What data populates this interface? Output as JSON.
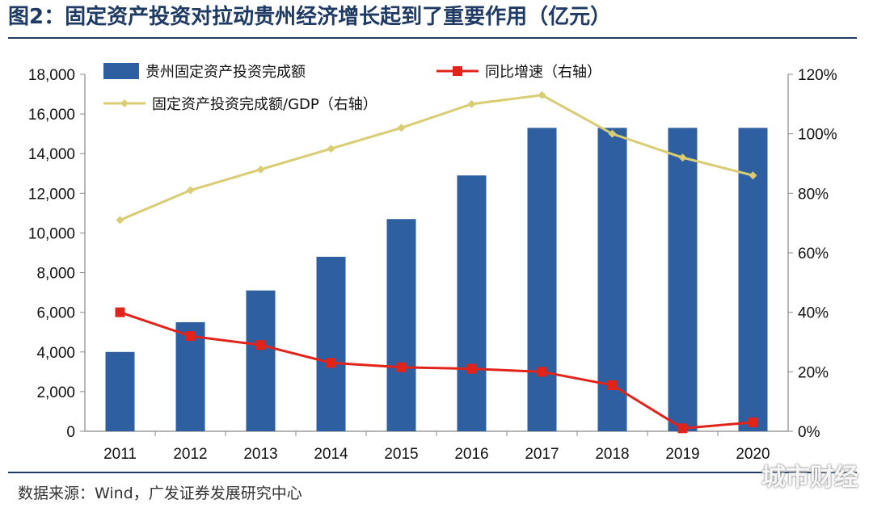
{
  "title": "图2：固定资产投资对拉动贵州经济增长起到了重要作用（亿元）",
  "source": "数据来源：Wind，广发证券发展研究中心",
  "watermark": "城市财经",
  "colors": {
    "bar": "#2e5fa0",
    "growth_line": "#e2231a",
    "ratio_line": "#d9cc72",
    "title": "#1f3a63"
  },
  "chart_data": {
    "type": "bar",
    "categories": [
      "2011",
      "2012",
      "2013",
      "2014",
      "2015",
      "2016",
      "2017",
      "2018",
      "2019",
      "2020"
    ],
    "left_axis": {
      "ylim": [
        0,
        18000
      ],
      "ticks": [
        "0",
        "2,000",
        "4,000",
        "6,000",
        "8,000",
        "10,000",
        "12,000",
        "14,000",
        "16,000",
        "18,000"
      ]
    },
    "right_axis": {
      "ylim": [
        0,
        120
      ],
      "ticks": [
        "0%",
        "20%",
        "40%",
        "60%",
        "80%",
        "100%",
        "120%"
      ]
    },
    "series": [
      {
        "name": "贵州固定资产投资完成额",
        "type": "bar",
        "axis": "left",
        "values": [
          4000,
          5500,
          7100,
          8800,
          10700,
          12900,
          15300,
          15300,
          15300,
          15300
        ]
      },
      {
        "name": "同比增速（右轴）",
        "type": "line",
        "axis": "right",
        "marker": "square",
        "values": [
          40,
          32,
          29,
          23,
          21.5,
          21,
          20,
          15.5,
          1,
          3
        ]
      },
      {
        "name": "固定资产投资完成额/GDP（右轴）",
        "type": "line",
        "axis": "right",
        "marker": "diamond",
        "values": [
          71,
          81,
          88,
          95,
          102,
          110,
          113,
          100,
          92,
          86
        ]
      }
    ],
    "legend_position": "top",
    "grid": false
  }
}
